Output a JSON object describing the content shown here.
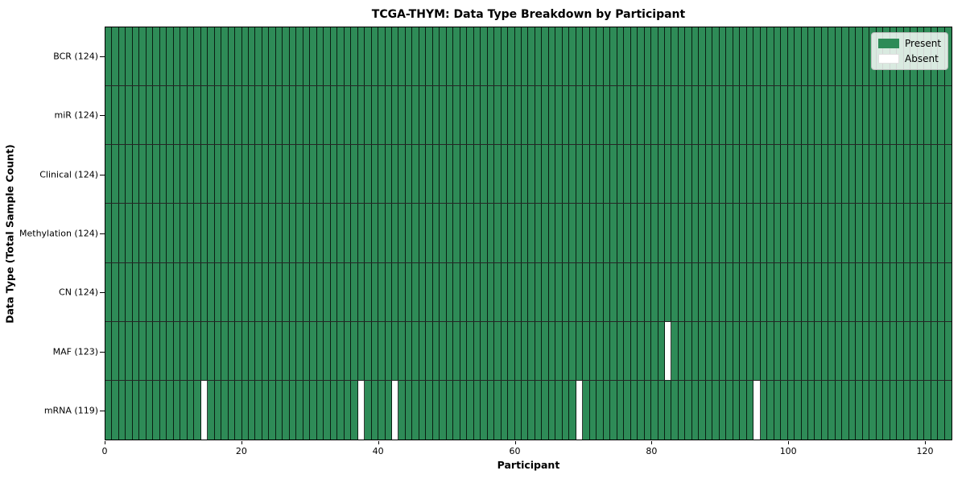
{
  "title": "TCGA-THYM: Data Type Breakdown by Participant",
  "chart_data": {
    "type": "heatmap",
    "title": "TCGA-THYM: Data Type Breakdown by Participant",
    "xlabel": "Participant",
    "ylabel": "Data Type (Total Sample Count)",
    "xlim": [
      0,
      124
    ],
    "n_participants": 124,
    "x_ticks": [
      0,
      20,
      40,
      60,
      80,
      100,
      120
    ],
    "grid": "cell-edges-black",
    "legend_position": "upper-right",
    "legend": [
      {
        "label": "Present",
        "color": "#2e8b57"
      },
      {
        "label": "Absent",
        "color": "#ffffff"
      }
    ],
    "rows": [
      {
        "label": "BCR (124)",
        "data_type": "BCR",
        "present_count": 124,
        "absent_participants": []
      },
      {
        "label": "miR (124)",
        "data_type": "miR",
        "present_count": 124,
        "absent_participants": []
      },
      {
        "label": "Clinical (124)",
        "data_type": "Clinical",
        "present_count": 124,
        "absent_participants": []
      },
      {
        "label": "Methylation (124)",
        "data_type": "Methylation",
        "present_count": 124,
        "absent_participants": []
      },
      {
        "label": "CN (124)",
        "data_type": "CN",
        "present_count": 124,
        "absent_participants": []
      },
      {
        "label": "MAF (123)",
        "data_type": "MAF",
        "present_count": 123,
        "absent_participants": [
          82
        ]
      },
      {
        "label": "mRNA (119)",
        "data_type": "mRNA",
        "present_count": 119,
        "absent_participants": [
          14,
          37,
          42,
          69,
          95
        ]
      }
    ]
  }
}
